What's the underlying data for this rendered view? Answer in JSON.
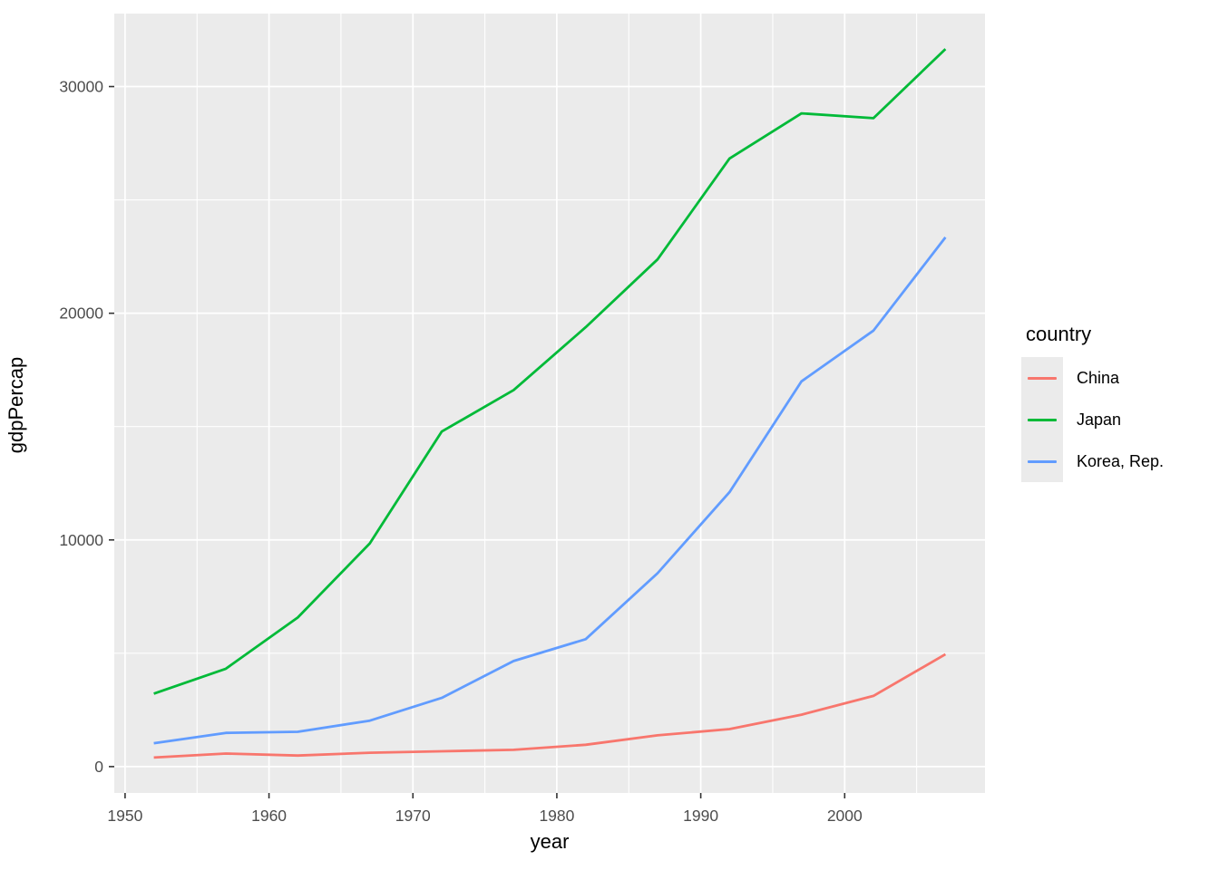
{
  "chart_data": {
    "type": "line",
    "title": "",
    "xlabel": "year",
    "ylabel": "gdpPercap",
    "x": [
      1952,
      1957,
      1962,
      1967,
      1972,
      1977,
      1982,
      1987,
      1992,
      1997,
      2002,
      2007
    ],
    "series": [
      {
        "name": "China",
        "color": "#F8766D",
        "values": [
          400.45,
          575.99,
          487.67,
          612.71,
          676.9,
          741.24,
          962.42,
          1378.9,
          1655.78,
          2289.23,
          3119.28,
          4959.11
        ]
      },
      {
        "name": "Japan",
        "color": "#00BA38",
        "values": [
          3216.96,
          4317.69,
          6576.65,
          9847.79,
          14778.79,
          16610.38,
          19384.11,
          22375.94,
          26824.9,
          28816.58,
          28604.59,
          31656.07
        ]
      },
      {
        "name": "Korea, Rep.",
        "color": "#619CFF",
        "values": [
          1030.59,
          1487.59,
          1536.34,
          2029.23,
          3030.88,
          4657.22,
          5622.94,
          8533.09,
          12104.28,
          16993.72,
          19233.99,
          23348.14
        ]
      }
    ],
    "xlim": [
      1949.25,
      2009.75
    ],
    "ylim": [
      -1163,
      33219
    ],
    "x_major_ticks": [
      1950,
      1960,
      1970,
      1980,
      1990,
      2000
    ],
    "x_minor_ticks": [
      1955,
      1965,
      1975,
      1985,
      1995,
      2005
    ],
    "y_major_ticks": [
      0,
      10000,
      20000,
      30000
    ],
    "y_minor_ticks": [
      5000,
      15000,
      25000
    ],
    "grid": true,
    "legend_position": "right"
  },
  "legend": {
    "title": "country",
    "items": [
      {
        "label": "China",
        "color": "#F8766D"
      },
      {
        "label": "Japan",
        "color": "#00BA38"
      },
      {
        "label": "Korea, Rep.",
        "color": "#619CFF"
      }
    ]
  },
  "colors": {
    "panel_bg": "#EBEBEB",
    "grid_major": "#FFFFFF",
    "grid_minor": "#FFFFFF",
    "tick_mark": "#333333",
    "tick_label": "#4D4D4D",
    "axis_title": "#000000",
    "legend_key_bg": "#EBEBEB"
  }
}
